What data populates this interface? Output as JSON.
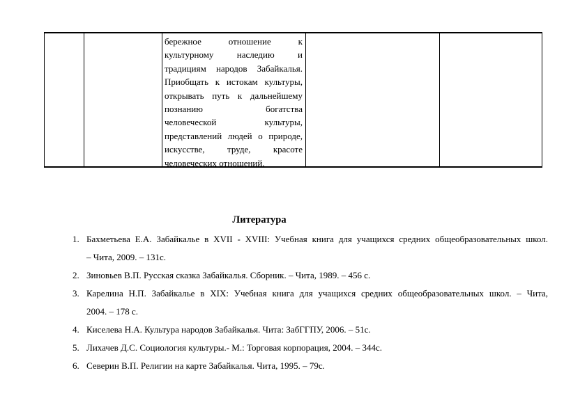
{
  "table": {
    "cell_lines": [
      "бережное отношение к",
      "культурному наследию и",
      "традициям народов Забайкалья.",
      "Приобщать к истокам культуры,",
      "открывать путь к дальнейшему",
      "познанию богатства",
      "человеческой культуры,",
      "представлений людей о природе,",
      "искусстве, труде, красоте",
      "человеческих отношений."
    ]
  },
  "literature": {
    "title": "Литература",
    "items": [
      {
        "num": "1.",
        "lines": [
          "Бахметьева Е.А. Забайкалье в  XVII - XVIII: Учебная книга для учащихся средних общеобразовательных школ.",
          "– Чита, 2009. – 131с."
        ]
      },
      {
        "num": "2.",
        "lines": [
          "Зиновьев В.П. Русская сказка Забайкалья. Сборник. – Чита, 1989. – 456 с."
        ]
      },
      {
        "num": "3.",
        "lines": [
          "Карелина Н.П. Забайкалье в XIX: Учебная книга для учащихся средних общеобразовательных школ. – Чита,",
          "2004. – 178 с."
        ]
      },
      {
        "num": "4.",
        "lines": [
          "Киселева Н.А. Культура народов Забайкалья. Чита: ЗабГГПУ, 2006. – 51с."
        ]
      },
      {
        "num": "5.",
        "lines": [
          "Лихачев Д.С. Социология культуры.- М.: Торговая корпорация, 2004. – 344с."
        ]
      },
      {
        "num": "6.",
        "lines": [
          "Северин В.П. Религии на карте Забайкалья. Чита, 1995. – 79с."
        ]
      }
    ]
  }
}
